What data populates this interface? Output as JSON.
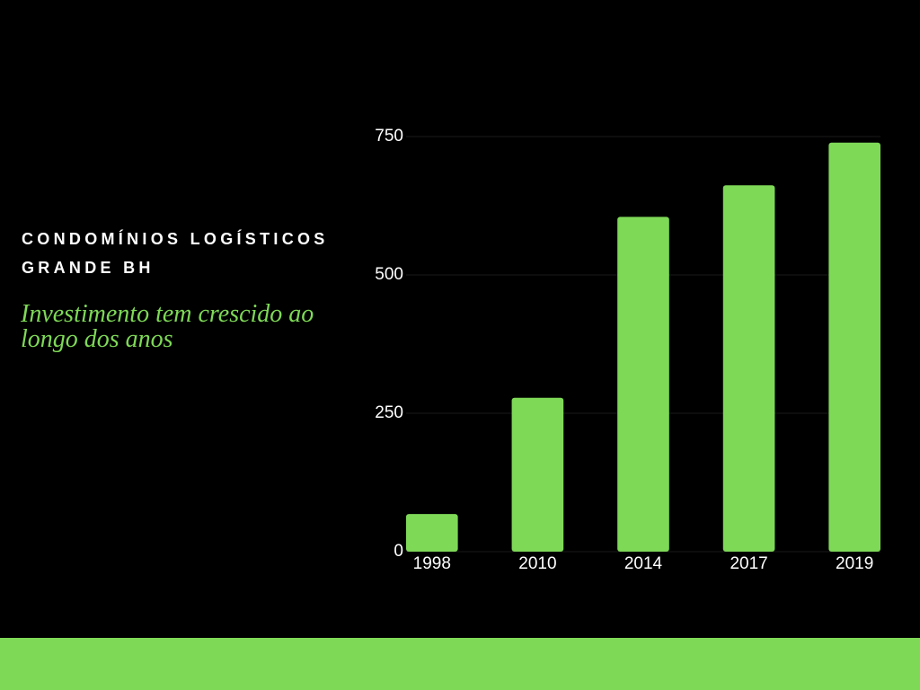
{
  "chart_data": {
    "type": "bar",
    "title": "CONDOMÍNIOS LOGÍSTICOS GRANDE BH",
    "subtitle": "Investimento tem crescido ao longo dos anos",
    "categories": [
      "1998",
      "2010",
      "2014",
      "2017",
      "2019"
    ],
    "values": [
      68,
      278,
      605,
      662,
      739
    ],
    "color": "#7ed957",
    "ylim": [
      0,
      750
    ],
    "yticks": [
      0,
      250,
      500,
      750
    ],
    "grid": true
  }
}
